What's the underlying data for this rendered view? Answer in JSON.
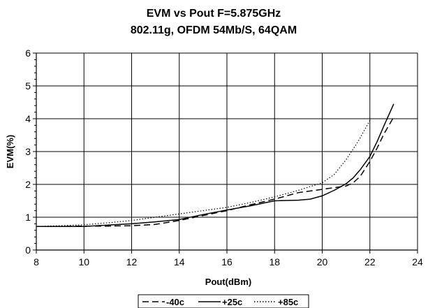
{
  "chart_data": {
    "type": "line",
    "title": "EVM vs Pout F=5.875GHz",
    "subtitle": "802.11g, OFDM 54Mb/S, 64QAM",
    "xlabel": "Pout(dBm)",
    "ylabel": "EVM(%)",
    "xlim": [
      8,
      24
    ],
    "ylim": [
      0,
      6
    ],
    "xticks": [
      "8",
      "10",
      "12",
      "14",
      "16",
      "18",
      "20",
      "22",
      "24"
    ],
    "yticks": [
      "0",
      "1",
      "2",
      "3",
      "4",
      "5",
      "6"
    ],
    "grid": true,
    "legend_position": "bottom",
    "series": [
      {
        "name": "-40c",
        "style": "dashed",
        "color": "#000000",
        "x": [
          8,
          9,
          10,
          11,
          12,
          13,
          14,
          15,
          16,
          17,
          18,
          19,
          20,
          20.5,
          21,
          21.3,
          21.6,
          22,
          22.3,
          22.6,
          23
        ],
        "y": [
          0.72,
          0.72,
          0.73,
          0.73,
          0.74,
          0.78,
          0.9,
          1.05,
          1.2,
          1.38,
          1.55,
          1.75,
          1.85,
          1.9,
          1.95,
          2.05,
          2.25,
          2.7,
          3.1,
          3.55,
          4.05
        ]
      },
      {
        "name": "+25c",
        "style": "solid",
        "color": "#000000",
        "x": [
          8,
          9,
          10,
          11,
          12,
          13,
          14,
          15,
          16,
          17,
          18,
          19,
          19.5,
          20,
          20.5,
          21,
          21.3,
          21.6,
          22,
          22.3,
          22.6,
          23
        ],
        "y": [
          0.72,
          0.72,
          0.72,
          0.76,
          0.8,
          0.86,
          0.93,
          1.08,
          1.22,
          1.35,
          1.5,
          1.52,
          1.55,
          1.65,
          1.82,
          2.02,
          2.2,
          2.45,
          2.85,
          3.3,
          3.8,
          4.45
        ]
      },
      {
        "name": "+85c",
        "style": "dotted",
        "color": "#000000",
        "x": [
          8,
          9,
          10,
          11,
          12,
          13,
          14,
          15,
          16,
          17,
          18,
          19,
          20,
          20.5,
          21,
          21.5,
          22
        ],
        "y": [
          0.72,
          0.74,
          0.77,
          0.83,
          0.9,
          1.0,
          1.1,
          1.2,
          1.3,
          1.45,
          1.62,
          1.82,
          2.05,
          2.3,
          2.75,
          3.3,
          3.95
        ]
      }
    ]
  }
}
